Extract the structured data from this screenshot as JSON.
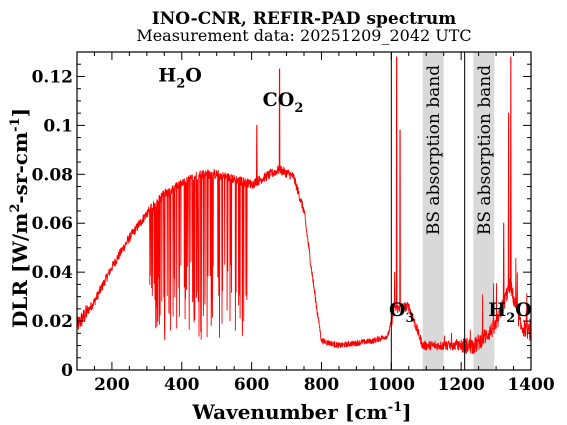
{
  "chart_data": {
    "type": "line",
    "title": "INO-CNR, REFIR-PAD spectrum",
    "subtitle": "Measurement data: 20251209_2042 UTC",
    "xlabel": {
      "base": "Wavenumber [cm",
      "sup": "-1",
      "end": "]"
    },
    "ylabel": {
      "a": "DLR [W/m",
      "sup1": "2",
      "b": "-sr-cm",
      "sup2": "-1",
      "c": "]"
    },
    "xlim": [
      100,
      1400
    ],
    "ylim": [
      0,
      0.13
    ],
    "xticks": [
      200,
      400,
      600,
      800,
      1000,
      1200,
      1400
    ],
    "yticks": [
      0,
      0.02,
      0.04,
      0.06,
      0.08,
      0.1,
      0.12
    ],
    "ytick_labels": [
      "0",
      "0.02",
      "0.04",
      "0.06",
      "0.08",
      "0.1",
      "0.12"
    ],
    "grid": false,
    "line_color": "#ff0000",
    "band_color": "#d9d9d9",
    "vlines": [
      1000,
      1210
    ],
    "bands": [
      {
        "x0": 1090,
        "x1": 1150,
        "label": "BS absorption band"
      },
      {
        "x0": 1235,
        "x1": 1295,
        "label": "BS absorption band"
      }
    ],
    "annotations": [
      {
        "base": "H",
        "sub": "2",
        "tail": "O",
        "x": 395,
        "y": 0.118
      },
      {
        "base": "CO",
        "sub": "2",
        "tail": "",
        "x": 690,
        "y": 0.108
      },
      {
        "base": "O",
        "sub": "3",
        "tail": "",
        "x": 1030,
        "y": 0.022
      },
      {
        "base": "H",
        "sub": "2",
        "tail": "O",
        "x": 1340,
        "y": 0.022
      }
    ],
    "series": [
      {
        "envelope": [
          [
            100,
            0.018
          ],
          [
            150,
            0.028
          ],
          [
            200,
            0.042
          ],
          [
            250,
            0.054
          ],
          [
            300,
            0.064
          ],
          [
            350,
            0.072
          ],
          [
            400,
            0.076
          ],
          [
            450,
            0.08
          ],
          [
            500,
            0.08
          ],
          [
            550,
            0.078
          ],
          [
            600,
            0.076
          ],
          [
            640,
            0.079
          ],
          [
            680,
            0.082
          ],
          [
            720,
            0.079
          ],
          [
            750,
            0.065
          ],
          [
            780,
            0.032
          ],
          [
            800,
            0.012
          ],
          [
            850,
            0.01
          ],
          [
            900,
            0.011
          ],
          [
            950,
            0.012
          ],
          [
            990,
            0.014
          ],
          [
            1010,
            0.025
          ],
          [
            1050,
            0.026
          ],
          [
            1090,
            0.01
          ],
          [
            1150,
            0.01
          ],
          [
            1200,
            0.01
          ],
          [
            1240,
            0.01
          ],
          [
            1300,
            0.018
          ],
          [
            1340,
            0.035
          ],
          [
            1370,
            0.018
          ],
          [
            1400,
            0.015
          ]
        ],
        "lines_start": 300,
        "lines_end": 600,
        "line_low": 0.012,
        "spikes": [
          [
            680,
            0.123
          ],
          [
            615,
            0.1
          ],
          [
            1015,
            0.128
          ],
          [
            1025,
            0.098
          ],
          [
            1342,
            0.128
          ],
          [
            1336,
            0.105
          ],
          [
            1322,
            0.06
          ],
          [
            1010,
            0.04
          ]
        ]
      }
    ]
  }
}
